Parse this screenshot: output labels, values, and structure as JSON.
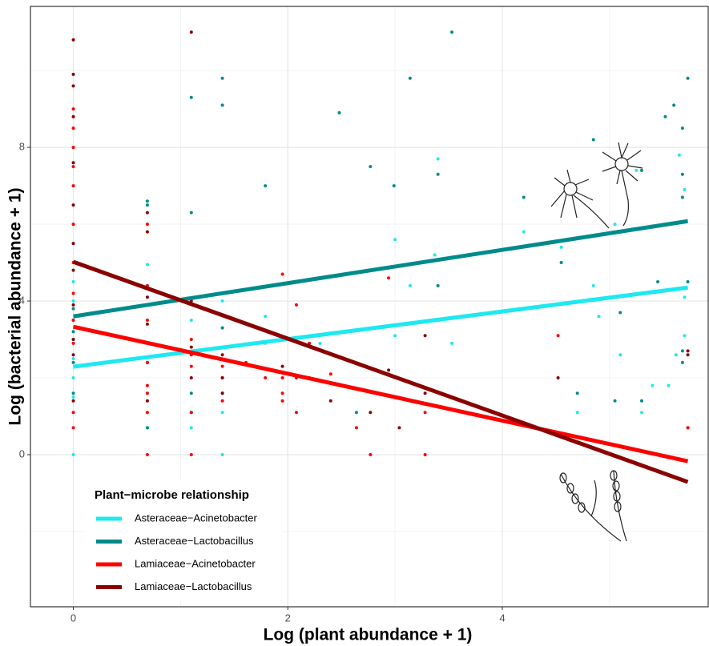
{
  "chart_data": {
    "type": "scatter",
    "x_label": "Log (plant abundance + 1)",
    "y_label": "Log (bacterial abundance + 1)",
    "xlim": [
      -0.4,
      5.92
    ],
    "ylim": [
      -3.96,
      11.67
    ],
    "xticks": [
      0,
      2,
      4
    ],
    "yticks": [
      0,
      4,
      8
    ],
    "x_minor_grid": [
      1,
      3,
      5
    ],
    "y_minor_grid": [
      -2,
      2,
      6,
      10
    ],
    "grid": true,
    "legend_title": "Plant−microbe relationship",
    "legend_position": "bottom-left",
    "series": [
      {
        "name": "Asteraceae−Acinetobacter",
        "color": "#1ee8f0",
        "x": [
          0,
          0,
          0,
          0,
          0,
          0,
          0,
          0,
          0.69,
          0.69,
          0.69,
          1.1,
          1.1,
          1.1,
          1.1,
          1.39,
          1.39,
          1.39,
          1.39,
          1.79,
          1.79,
          2.3,
          3.0,
          3.0,
          3.0,
          3.14,
          3.37,
          3.4,
          3.53,
          4.2,
          4.55,
          4.7,
          4.85,
          4.9,
          5.05,
          5.1,
          5.25,
          5.3,
          5.4,
          5.55,
          5.62,
          5.65,
          5.7,
          5.7,
          5.7
        ],
        "values": [
          0,
          1.5,
          2,
          2.5,
          3,
          3.5,
          4,
          4.5,
          4.95,
          4.4,
          0.7,
          3.5,
          3.0,
          1.1,
          0.7,
          4.0,
          3.3,
          1.1,
          0,
          3.6,
          2.9,
          2.9,
          5.6,
          3.1,
          2.0,
          4.4,
          5.2,
          7.7,
          2.9,
          5.8,
          5.4,
          1.1,
          4.4,
          3.6,
          6.0,
          2.6,
          7.4,
          1.1,
          1.8,
          1.8,
          2.6,
          7.8,
          4.1,
          3.1,
          6.9
        ],
        "fit_x": [
          0,
          5.73
        ],
        "fit_values": [
          2.29,
          4.35
        ]
      },
      {
        "name": "Asteraceae−Lactobacillus",
        "color": "#008b8b",
        "x": [
          0,
          0,
          0,
          0,
          0.69,
          0.69,
          0.69,
          0.69,
          1.1,
          1.1,
          1.1,
          1.1,
          1.39,
          1.39,
          1.39,
          1.39,
          1.79,
          2.2,
          2.48,
          2.64,
          2.77,
          2.99,
          3.14,
          3.4,
          3.4,
          3.53,
          4.2,
          4.55,
          4.7,
          4.85,
          5.05,
          5.1,
          5.3,
          5.3,
          5.45,
          5.52,
          5.6,
          5.68,
          5.68,
          5.68,
          5.68,
          5.68,
          5.73,
          5.73,
          5.73
        ],
        "values": [
          3.2,
          3.8,
          2.4,
          1.6,
          6.6,
          6.5,
          2.4,
          0.7,
          9.3,
          6.3,
          1.6,
          1.1,
          9.8,
          9.1,
          3.3,
          1.6,
          7.0,
          2.9,
          8.9,
          1.1,
          7.5,
          7.0,
          9.8,
          4.4,
          7.3,
          11.0,
          6.7,
          5.0,
          1.6,
          8.2,
          1.4,
          3.7,
          7.4,
          1.4,
          4.5,
          8.8,
          9.1,
          8.5,
          7.3,
          6.7,
          2.7,
          2.4,
          9.8,
          4.5,
          0.7
        ],
        "fit_x": [
          0,
          5.73
        ],
        "fit_values": [
          3.6,
          6.08
        ]
      },
      {
        "name": "Lamiaceae−Acinetobacter",
        "color": "#ff0000",
        "x": [
          0,
          0,
          0,
          0,
          0,
          0,
          0,
          0,
          0,
          0,
          0,
          0,
          0.69,
          0.69,
          0.69,
          0.69,
          0.69,
          0.69,
          0.69,
          0.69,
          1.1,
          1.1,
          1.1,
          1.1,
          1.1,
          1.39,
          1.39,
          1.39,
          1.61,
          1.79,
          1.95,
          1.95,
          1.95,
          1.95,
          2.08,
          2.08,
          2.08,
          2.2,
          2.4,
          2.64,
          2.77,
          2.94,
          3.28,
          3.28,
          4.52,
          5.73
        ],
        "values": [
          0.7,
          1.1,
          2.9,
          3.5,
          4.2,
          5.0,
          6.0,
          7.0,
          7.5,
          8.0,
          8.5,
          9.0,
          0,
          1.1,
          1.6,
          1.8,
          2.4,
          3.5,
          4.4,
          6.0,
          0,
          1.1,
          2.3,
          2.6,
          3.0,
          1.4,
          2.0,
          2.3,
          2.4,
          2.0,
          1.4,
          1.6,
          2.0,
          4.7,
          1.1,
          2.0,
          3.9,
          2.9,
          2.1,
          0.7,
          0,
          4.6,
          0,
          1.1,
          3.1,
          0.7
        ],
        "fit_x": [
          0,
          5.73
        ],
        "fit_values": [
          3.33,
          -0.17
        ]
      },
      {
        "name": "Lamiaceae−Lactobacillus",
        "color": "#8b0000",
        "x": [
          0,
          0,
          0,
          0,
          0,
          0,
          0,
          0,
          0,
          0,
          0,
          0,
          0.69,
          0.69,
          0.69,
          0.69,
          0.69,
          1.1,
          1.1,
          1.1,
          1.1,
          1.39,
          1.39,
          1.39,
          1.95,
          2.2,
          2.4,
          2.77,
          2.94,
          3.04,
          3.28,
          3.28,
          4.52,
          5.73,
          5.73
        ],
        "values": [
          10.8,
          9.9,
          9.6,
          8.8,
          7.6,
          6.5,
          5.5,
          4.8,
          3.9,
          3.0,
          2.6,
          1.4,
          6.3,
          5.8,
          4.1,
          3.4,
          1.4,
          11.0,
          4.0,
          2.8,
          2.0,
          2.6,
          2.0,
          1.6,
          2.3,
          2.0,
          1.4,
          1.1,
          2.2,
          0.7,
          1.6,
          3.1,
          2.0,
          2.7,
          2.6
        ],
        "fit_x": [
          0,
          5.73
        ],
        "fit_values": [
          5.02,
          -0.71
        ]
      }
    ]
  }
}
